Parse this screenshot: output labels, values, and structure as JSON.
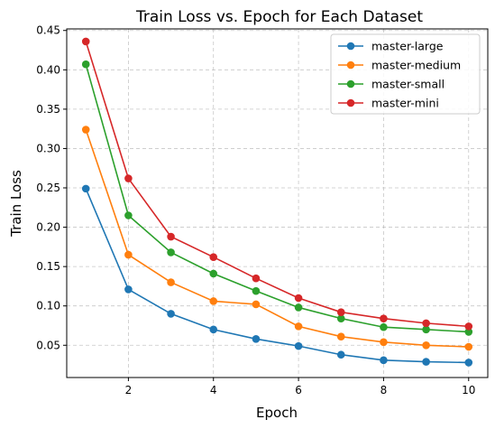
{
  "chart_data": {
    "type": "line",
    "title": "Train Loss vs. Epoch for Each Dataset",
    "xlabel": "Epoch",
    "ylabel": "Train Loss",
    "x": [
      1,
      2,
      3,
      4,
      5,
      6,
      7,
      8,
      9,
      10
    ],
    "xlim": [
      0.55,
      10.45
    ],
    "ylim": [
      0.009,
      0.452
    ],
    "xticks": [
      2,
      4,
      6,
      8,
      10
    ],
    "yticks": [
      0.05,
      0.1,
      0.15,
      0.2,
      0.25,
      0.3,
      0.35,
      0.4,
      0.45
    ],
    "grid": true,
    "legend_position": "top-right",
    "series": [
      {
        "name": "master-large",
        "color": "#1f77b4",
        "values": [
          0.249,
          0.121,
          0.09,
          0.07,
          0.058,
          0.049,
          0.038,
          0.031,
          0.029,
          0.028
        ]
      },
      {
        "name": "master-medium",
        "color": "#ff7f0e",
        "values": [
          0.324,
          0.165,
          0.13,
          0.106,
          0.102,
          0.074,
          0.061,
          0.054,
          0.05,
          0.048
        ]
      },
      {
        "name": "master-small",
        "color": "#2ca02c",
        "values": [
          0.407,
          0.215,
          0.168,
          0.141,
          0.119,
          0.098,
          0.084,
          0.073,
          0.07,
          0.067
        ]
      },
      {
        "name": "master-mini",
        "color": "#d62728",
        "values": [
          0.436,
          0.262,
          0.188,
          0.162,
          0.135,
          0.11,
          0.092,
          0.084,
          0.078,
          0.074
        ]
      }
    ]
  }
}
